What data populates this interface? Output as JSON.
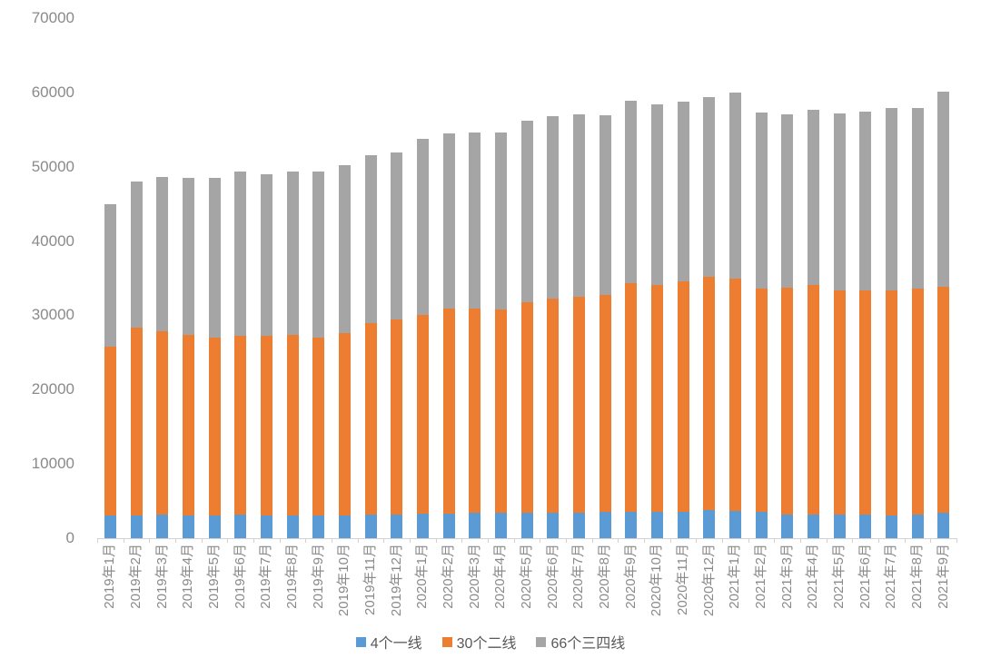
{
  "chart_data": {
    "type": "bar",
    "stacked": true,
    "title": "",
    "xlabel": "",
    "ylabel": "",
    "ylim": [
      0,
      70000
    ],
    "ytick_step": 10000,
    "yticks": [
      0,
      10000,
      20000,
      30000,
      40000,
      50000,
      60000,
      70000
    ],
    "grid": false,
    "legend_position": "bottom",
    "categories": [
      "2019年1月",
      "2019年2月",
      "2019年3月",
      "2019年4月",
      "2019年5月",
      "2019年6月",
      "2019年7月",
      "2019年8月",
      "2019年9月",
      "2019年10月",
      "2019年11月",
      "2019年12月",
      "2020年1月",
      "2020年2月",
      "2020年3月",
      "2020年4月",
      "2020年5月",
      "2020年6月",
      "2020年7月",
      "2020年8月",
      "2020年9月",
      "2020年10月",
      "2020年11月",
      "2020年12月",
      "2021年1月",
      "2021年2月",
      "2021年3月",
      "2021年4月",
      "2021年5月",
      "2021年6月",
      "2021年7月",
      "2021年8月",
      "2021年9月"
    ],
    "series": [
      {
        "name": "4个一线",
        "color": "#5b9bd5",
        "values": [
          3000,
          3100,
          3150,
          3100,
          3100,
          3200,
          3100,
          3100,
          3050,
          3100,
          3150,
          3200,
          3250,
          3350,
          3400,
          3400,
          3450,
          3450,
          3450,
          3500,
          3600,
          3500,
          3500,
          3750,
          3700,
          3500,
          3200,
          3200,
          3150,
          3150,
          3050,
          3150,
          3400
        ]
      },
      {
        "name": "30个二线",
        "color": "#ed7d31",
        "values": [
          22800,
          25300,
          24750,
          24250,
          23850,
          24000,
          24100,
          24300,
          24000,
          24550,
          25850,
          26250,
          26850,
          27500,
          27450,
          27400,
          28350,
          28800,
          29100,
          29300,
          30750,
          30600,
          31100,
          31400,
          31200,
          30100,
          30550,
          30900,
          30200,
          30200,
          30300,
          30400,
          30450
        ]
      },
      {
        "name": "66个三四线",
        "color": "#a5a5a5",
        "values": [
          19100,
          19600,
          20750,
          21200,
          21550,
          22150,
          21850,
          21900,
          22300,
          22600,
          22550,
          22500,
          23600,
          23600,
          23700,
          23750,
          24350,
          24600,
          24450,
          24150,
          24550,
          24300,
          24200,
          24250,
          25100,
          23650,
          23300,
          23600,
          23850,
          24100,
          24500,
          24400,
          26200
        ]
      }
    ],
    "totals": [
      44900,
      48000,
      48650,
      48550,
      48500,
      49350,
      49050,
      49300,
      49350,
      50250,
      51550,
      51950,
      53700,
      54450,
      54550,
      54550,
      56150,
      56850,
      57000,
      56950,
      58900,
      58400,
      58800,
      59400,
      60000,
      57250,
      57050,
      57700,
      57200,
      57450,
      57850,
      57950,
      60050
    ]
  },
  "style": {
    "background": "#ffffff",
    "axis_color": "#d2d2d2",
    "tick_label_color": "#8a8a8a",
    "legend_text_color": "#595959"
  }
}
